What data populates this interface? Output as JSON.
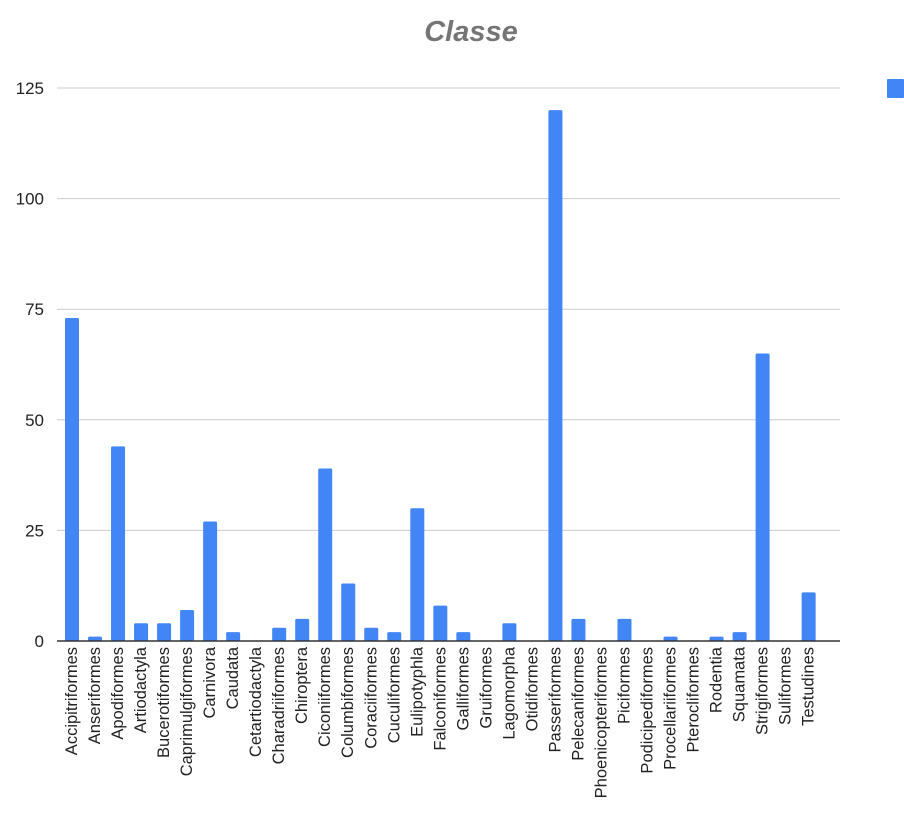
{
  "chart_data": {
    "type": "bar",
    "title": "Classe",
    "xlabel": "",
    "ylabel": "",
    "ylim": [
      0,
      125
    ],
    "yticks": [
      0,
      25,
      50,
      75,
      100,
      125
    ],
    "grid": true,
    "legend_position": "top-right",
    "color": "#4285F4",
    "categories": [
      "Accipitriformes",
      "Anseriformes",
      "Apodiformes",
      "Artiodactyla",
      "Bucerotiformes",
      "Caprimulgiformes",
      "Carnivora",
      "Caudata",
      "Cetartiodactyla",
      "Charadriiformes",
      "Chiroptera",
      "Ciconiiformes",
      "Columbiformes",
      "Coraciiformes",
      "Cuculiformes",
      "Eulipotyphla",
      "Falconiformes",
      "Galliformes",
      "Gruiformes",
      "Lagomorpha",
      "Otidiformes",
      "Passeriformes",
      "Pelecaniformes",
      "Phoenicopteriformes",
      "Piciformes",
      "Podicipediformes",
      "Procellariiformes",
      "Pterocliformes",
      "Rodentia",
      "Squamata",
      "Strigiformes",
      "Suliformes",
      "Testudines"
    ],
    "values": [
      73,
      1,
      44,
      4,
      4,
      7,
      27,
      2,
      0,
      3,
      5,
      39,
      13,
      3,
      2,
      30,
      8,
      2,
      0,
      4,
      0,
      120,
      5,
      0,
      5,
      0,
      1,
      0,
      1,
      2,
      65,
      0,
      11
    ]
  }
}
